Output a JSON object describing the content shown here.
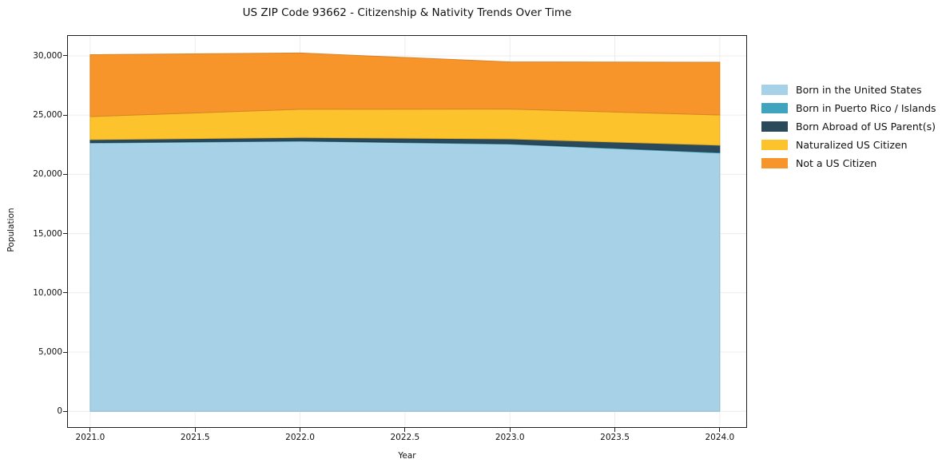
{
  "title": "US ZIP Code 93662 - Citizenship & Nativity Trends Over Time",
  "chart_data": {
    "type": "area",
    "stacked": true,
    "title": "US ZIP Code 93662 - Citizenship & Nativity Trends Over Time",
    "xlabel": "Year",
    "ylabel": "Population",
    "x": [
      2021,
      2022,
      2023,
      2024
    ],
    "series": [
      {
        "name": "Born in the United States",
        "color": "#a6d1e6",
        "values": [
          22650,
          22800,
          22550,
          21800
        ]
      },
      {
        "name": "Born in Puerto Rico / Islands",
        "color": "#3fa5bf",
        "values": [
          30,
          30,
          40,
          60
        ]
      },
      {
        "name": "Born Abroad of US Parent(s)",
        "color": "#2a4a5c",
        "values": [
          250,
          280,
          400,
          600
        ]
      },
      {
        "name": "Naturalized US Citizen",
        "color": "#fdc32c",
        "values": [
          1950,
          2380,
          2520,
          2550
        ]
      },
      {
        "name": "Not a US Citizen",
        "color": "#f7952b",
        "values": [
          5220,
          4750,
          3980,
          4450
        ]
      }
    ],
    "totals": [
      30100,
      30240,
      29490,
      29460
    ],
    "xlim": [
      2020.89,
      2024.13
    ],
    "ylim": [
      -1400,
      31750
    ],
    "xticks": [
      {
        "v": 2021.0,
        "label": "2021.0"
      },
      {
        "v": 2021.5,
        "label": "2021.5"
      },
      {
        "v": 2022.0,
        "label": "2022.0"
      },
      {
        "v": 2022.5,
        "label": "2022.5"
      },
      {
        "v": 2023.0,
        "label": "2023.0"
      },
      {
        "v": 2023.5,
        "label": "2023.5"
      },
      {
        "v": 2024.0,
        "label": "2024.0"
      }
    ],
    "yticks": [
      {
        "v": 0,
        "label": "0"
      },
      {
        "v": 5000,
        "label": "5,000"
      },
      {
        "v": 10000,
        "label": "10,000"
      },
      {
        "v": 15000,
        "label": "15,000"
      },
      {
        "v": 20000,
        "label": "20,000"
      },
      {
        "v": 25000,
        "label": "25,000"
      },
      {
        "v": 30000,
        "label": "30,000"
      }
    ],
    "grid": true,
    "grid_color": "#ececec",
    "spine_color": "#1f1f1f",
    "legend_position": "right"
  }
}
